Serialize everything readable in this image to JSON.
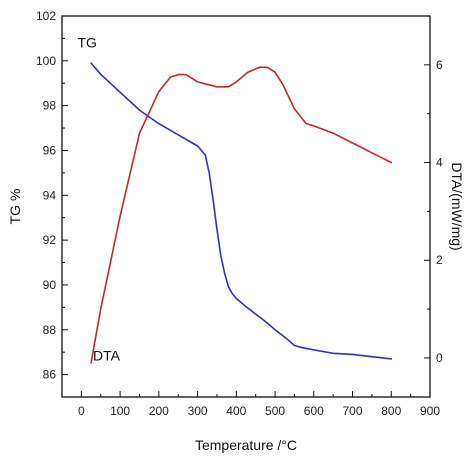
{
  "chart_data": {
    "type": "line",
    "title": "",
    "xlabel": "Temperature /°C",
    "ylabel_left": "TG %",
    "ylabel_right": "DTA/(mW/mg)",
    "xlim": [
      -50,
      900
    ],
    "ylim_left": [
      85,
      102
    ],
    "ylim_right": [
      -0.8,
      7.0
    ],
    "x_ticks": [
      0,
      100,
      200,
      300,
      400,
      500,
      600,
      700,
      800,
      900
    ],
    "y_left_ticks": [
      86,
      88,
      90,
      92,
      94,
      96,
      98,
      100,
      102
    ],
    "y_right_ticks": [
      0,
      2,
      4,
      6
    ],
    "grid": false,
    "series": [
      {
        "name": "TG",
        "axis": "left",
        "color": "#2f2fcc",
        "x": [
          25,
          50,
          100,
          150,
          200,
          250,
          280,
          300,
          320,
          330,
          340,
          350,
          360,
          370,
          380,
          390,
          400,
          420,
          450,
          480,
          500,
          530,
          550,
          570,
          600,
          650,
          700,
          750,
          800
        ],
        "y": [
          99.9,
          99.4,
          98.6,
          97.8,
          97.2,
          96.7,
          96.4,
          96.2,
          95.8,
          95.0,
          93.8,
          92.5,
          91.3,
          90.5,
          89.9,
          89.6,
          89.4,
          89.1,
          88.7,
          88.3,
          88.0,
          87.6,
          87.3,
          87.2,
          87.1,
          86.95,
          86.9,
          86.8,
          86.7
        ]
      },
      {
        "name": "DTA",
        "axis": "right",
        "color": "#c0282c",
        "x": [
          25,
          50,
          100,
          150,
          200,
          230,
          250,
          270,
          300,
          350,
          380,
          400,
          430,
          460,
          480,
          500,
          520,
          550,
          580,
          600,
          650,
          700,
          750,
          800
        ],
        "y": [
          -0.1,
          1.0,
          2.9,
          4.6,
          5.45,
          5.75,
          5.8,
          5.8,
          5.65,
          5.55,
          5.55,
          5.65,
          5.85,
          5.95,
          5.95,
          5.85,
          5.6,
          5.1,
          4.8,
          4.75,
          4.6,
          4.4,
          4.2,
          4.0
        ]
      }
    ],
    "annotations": [
      {
        "text": "TG",
        "series": "TG"
      },
      {
        "text": "DTA",
        "series": "DTA"
      }
    ]
  }
}
